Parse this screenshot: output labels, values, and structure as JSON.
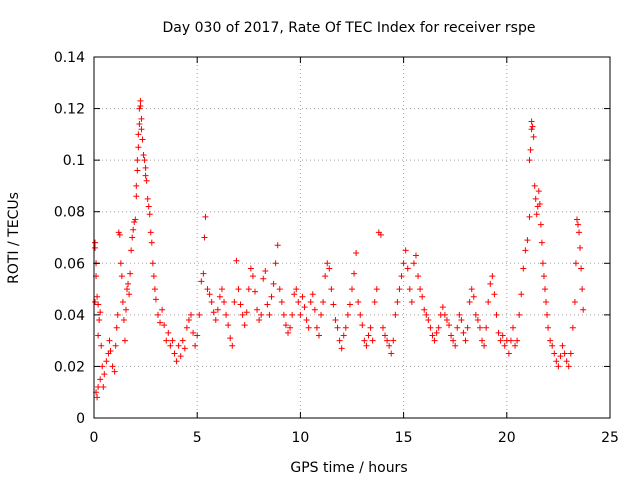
{
  "chart_data": {
    "type": "scatter",
    "title": "Day 030 of 2017, Rate Of TEC Index for receiver rspe",
    "xlabel": "GPS time / hours",
    "ylabel": "ROTI / TECUs",
    "xlim": [
      0,
      25
    ],
    "ylim": [
      0,
      0.14
    ],
    "x_ticks": [
      0,
      5,
      10,
      15,
      20,
      25
    ],
    "x_tick_labels": [
      "0",
      "5",
      "10",
      "15",
      "20",
      "25"
    ],
    "y_ticks": [
      0,
      0.02,
      0.04,
      0.06,
      0.08,
      0.1,
      0.12,
      0.14
    ],
    "y_tick_labels": [
      "0",
      "0.02",
      "0.04",
      "0.06",
      "0.08",
      "0.1",
      "0.12",
      "0.14"
    ],
    "grid": true,
    "marker": "+",
    "color": "#ff0000",
    "series": [
      {
        "name": "ROTI",
        "points": [
          [
            0.05,
            0.045
          ],
          [
            0.05,
            0.066
          ],
          [
            0.05,
            0.068
          ],
          [
            0.1,
            0.055
          ],
          [
            0.1,
            0.06
          ],
          [
            0.15,
            0.047
          ],
          [
            0.2,
            0.044
          ],
          [
            0.25,
            0.038
          ],
          [
            0.3,
            0.041
          ],
          [
            0.2,
            0.032
          ],
          [
            0.35,
            0.028
          ],
          [
            0.4,
            0.02
          ],
          [
            0.3,
            0.015
          ],
          [
            0.2,
            0.012
          ],
          [
            0.1,
            0.01
          ],
          [
            0.15,
            0.008
          ],
          [
            0.45,
            0.012
          ],
          [
            0.5,
            0.017
          ],
          [
            0.6,
            0.022
          ],
          [
            0.7,
            0.025
          ],
          [
            0.75,
            0.03
          ],
          [
            0.8,
            0.026
          ],
          [
            0.9,
            0.02
          ],
          [
            1.0,
            0.018
          ],
          [
            1.05,
            0.028
          ],
          [
            1.1,
            0.035
          ],
          [
            1.15,
            0.04
          ],
          [
            1.2,
            0.072
          ],
          [
            1.25,
            0.071
          ],
          [
            1.3,
            0.06
          ],
          [
            1.35,
            0.055
          ],
          [
            1.4,
            0.045
          ],
          [
            1.45,
            0.038
          ],
          [
            1.5,
            0.03
          ],
          [
            1.55,
            0.042
          ],
          [
            1.6,
            0.05
          ],
          [
            1.65,
            0.052
          ],
          [
            1.7,
            0.048
          ],
          [
            1.75,
            0.056
          ],
          [
            1.8,
            0.065
          ],
          [
            1.85,
            0.07
          ],
          [
            1.9,
            0.073
          ],
          [
            1.95,
            0.076
          ],
          [
            2.0,
            0.077
          ],
          [
            2.05,
            0.086
          ],
          [
            2.05,
            0.09
          ],
          [
            2.1,
            0.096
          ],
          [
            2.1,
            0.1
          ],
          [
            2.15,
            0.105
          ],
          [
            2.15,
            0.11
          ],
          [
            2.2,
            0.114
          ],
          [
            2.2,
            0.12
          ],
          [
            2.25,
            0.123
          ],
          [
            2.25,
            0.121
          ],
          [
            2.3,
            0.116
          ],
          [
            2.3,
            0.112
          ],
          [
            2.35,
            0.108
          ],
          [
            2.4,
            0.102
          ],
          [
            2.45,
            0.1
          ],
          [
            2.5,
            0.097
          ],
          [
            2.5,
            0.094
          ],
          [
            2.55,
            0.092
          ],
          [
            2.6,
            0.085
          ],
          [
            2.65,
            0.082
          ],
          [
            2.7,
            0.079
          ],
          [
            2.75,
            0.072
          ],
          [
            2.8,
            0.068
          ],
          [
            2.85,
            0.06
          ],
          [
            2.9,
            0.055
          ],
          [
            2.95,
            0.05
          ],
          [
            3.0,
            0.046
          ],
          [
            3.1,
            0.04
          ],
          [
            3.2,
            0.037
          ],
          [
            3.3,
            0.042
          ],
          [
            3.4,
            0.036
          ],
          [
            3.5,
            0.03
          ],
          [
            3.6,
            0.033
          ],
          [
            3.7,
            0.028
          ],
          [
            3.8,
            0.03
          ],
          [
            3.9,
            0.025
          ],
          [
            4.0,
            0.022
          ],
          [
            4.1,
            0.028
          ],
          [
            4.2,
            0.024
          ],
          [
            4.3,
            0.03
          ],
          [
            4.4,
            0.027
          ],
          [
            4.5,
            0.035
          ],
          [
            4.6,
            0.038
          ],
          [
            4.7,
            0.04
          ],
          [
            4.8,
            0.033
          ],
          [
            4.9,
            0.028
          ],
          [
            5.0,
            0.032
          ],
          [
            5.1,
            0.04
          ],
          [
            5.2,
            0.053
          ],
          [
            5.3,
            0.056
          ],
          [
            5.35,
            0.07
          ],
          [
            5.4,
            0.078
          ],
          [
            5.5,
            0.05
          ],
          [
            5.6,
            0.048
          ],
          [
            5.7,
            0.045
          ],
          [
            5.8,
            0.041
          ],
          [
            5.9,
            0.038
          ],
          [
            6.0,
            0.042
          ],
          [
            6.1,
            0.047
          ],
          [
            6.2,
            0.05
          ],
          [
            6.3,
            0.045
          ],
          [
            6.4,
            0.04
          ],
          [
            6.5,
            0.036
          ],
          [
            6.6,
            0.031
          ],
          [
            6.7,
            0.028
          ],
          [
            6.8,
            0.045
          ],
          [
            6.9,
            0.061
          ],
          [
            7.0,
            0.05
          ],
          [
            7.1,
            0.044
          ],
          [
            7.2,
            0.04
          ],
          [
            7.3,
            0.036
          ],
          [
            7.4,
            0.041
          ],
          [
            7.5,
            0.05
          ],
          [
            7.6,
            0.058
          ],
          [
            7.7,
            0.055
          ],
          [
            7.8,
            0.049
          ],
          [
            7.9,
            0.042
          ],
          [
            8.0,
            0.038
          ],
          [
            8.1,
            0.04
          ],
          [
            8.2,
            0.054
          ],
          [
            8.3,
            0.057
          ],
          [
            8.4,
            0.044
          ],
          [
            8.5,
            0.04
          ],
          [
            8.6,
            0.047
          ],
          [
            8.7,
            0.052
          ],
          [
            8.8,
            0.06
          ],
          [
            8.9,
            0.067
          ],
          [
            9.0,
            0.05
          ],
          [
            9.1,
            0.045
          ],
          [
            9.2,
            0.04
          ],
          [
            9.3,
            0.036
          ],
          [
            9.4,
            0.033
          ],
          [
            9.5,
            0.035
          ],
          [
            9.6,
            0.04
          ],
          [
            9.7,
            0.048
          ],
          [
            9.8,
            0.05
          ],
          [
            9.9,
            0.045
          ],
          [
            10.0,
            0.04
          ],
          [
            10.1,
            0.047
          ],
          [
            10.2,
            0.043
          ],
          [
            10.3,
            0.038
          ],
          [
            10.4,
            0.035
          ],
          [
            10.5,
            0.045
          ],
          [
            10.6,
            0.048
          ],
          [
            10.7,
            0.042
          ],
          [
            10.8,
            0.035
          ],
          [
            10.9,
            0.032
          ],
          [
            11.0,
            0.04
          ],
          [
            11.1,
            0.045
          ],
          [
            11.2,
            0.055
          ],
          [
            11.3,
            0.06
          ],
          [
            11.4,
            0.058
          ],
          [
            11.5,
            0.05
          ],
          [
            11.6,
            0.044
          ],
          [
            11.7,
            0.038
          ],
          [
            11.8,
            0.035
          ],
          [
            11.9,
            0.03
          ],
          [
            12.0,
            0.027
          ],
          [
            12.1,
            0.032
          ],
          [
            12.2,
            0.035
          ],
          [
            12.3,
            0.04
          ],
          [
            12.4,
            0.044
          ],
          [
            12.5,
            0.05
          ],
          [
            12.6,
            0.056
          ],
          [
            12.7,
            0.064
          ],
          [
            12.8,
            0.045
          ],
          [
            12.9,
            0.04
          ],
          [
            13.0,
            0.036
          ],
          [
            13.1,
            0.03
          ],
          [
            13.2,
            0.028
          ],
          [
            13.3,
            0.032
          ],
          [
            13.4,
            0.035
          ],
          [
            13.5,
            0.03
          ],
          [
            13.6,
            0.045
          ],
          [
            13.7,
            0.05
          ],
          [
            13.8,
            0.072
          ],
          [
            13.9,
            0.071
          ],
          [
            14.0,
            0.035
          ],
          [
            14.1,
            0.032
          ],
          [
            14.2,
            0.03
          ],
          [
            14.3,
            0.028
          ],
          [
            14.4,
            0.025
          ],
          [
            14.5,
            0.03
          ],
          [
            14.6,
            0.04
          ],
          [
            14.7,
            0.045
          ],
          [
            14.8,
            0.05
          ],
          [
            14.9,
            0.055
          ],
          [
            15.0,
            0.06
          ],
          [
            15.1,
            0.065
          ],
          [
            15.2,
            0.058
          ],
          [
            15.3,
            0.05
          ],
          [
            15.4,
            0.045
          ],
          [
            15.5,
            0.06
          ],
          [
            15.6,
            0.063
          ],
          [
            15.7,
            0.055
          ],
          [
            15.8,
            0.05
          ],
          [
            15.9,
            0.047
          ],
          [
            16.0,
            0.042
          ],
          [
            16.1,
            0.04
          ],
          [
            16.2,
            0.038
          ],
          [
            16.3,
            0.035
          ],
          [
            16.4,
            0.032
          ],
          [
            16.5,
            0.03
          ],
          [
            16.6,
            0.033
          ],
          [
            16.7,
            0.035
          ],
          [
            16.8,
            0.04
          ],
          [
            16.9,
            0.043
          ],
          [
            17.0,
            0.04
          ],
          [
            17.1,
            0.038
          ],
          [
            17.2,
            0.036
          ],
          [
            17.3,
            0.032
          ],
          [
            17.4,
            0.03
          ],
          [
            17.5,
            0.028
          ],
          [
            17.6,
            0.035
          ],
          [
            17.7,
            0.04
          ],
          [
            17.8,
            0.038
          ],
          [
            17.9,
            0.033
          ],
          [
            18.0,
            0.03
          ],
          [
            18.1,
            0.035
          ],
          [
            18.2,
            0.045
          ],
          [
            18.3,
            0.05
          ],
          [
            18.4,
            0.047
          ],
          [
            18.5,
            0.04
          ],
          [
            18.6,
            0.038
          ],
          [
            18.7,
            0.035
          ],
          [
            18.8,
            0.03
          ],
          [
            18.9,
            0.028
          ],
          [
            19.0,
            0.035
          ],
          [
            19.1,
            0.045
          ],
          [
            19.2,
            0.052
          ],
          [
            19.3,
            0.055
          ],
          [
            19.4,
            0.048
          ],
          [
            19.5,
            0.04
          ],
          [
            19.6,
            0.033
          ],
          [
            19.7,
            0.03
          ],
          [
            19.8,
            0.032
          ],
          [
            19.9,
            0.028
          ],
          [
            20.0,
            0.03
          ],
          [
            20.1,
            0.025
          ],
          [
            20.2,
            0.03
          ],
          [
            20.3,
            0.035
          ],
          [
            20.4,
            0.028
          ],
          [
            20.5,
            0.03
          ],
          [
            20.6,
            0.04
          ],
          [
            20.7,
            0.048
          ],
          [
            20.8,
            0.058
          ],
          [
            20.9,
            0.065
          ],
          [
            21.0,
            0.069
          ],
          [
            21.1,
            0.078
          ],
          [
            21.1,
            0.1
          ],
          [
            21.15,
            0.104
          ],
          [
            21.2,
            0.112
          ],
          [
            21.2,
            0.115
          ],
          [
            21.25,
            0.113
          ],
          [
            21.3,
            0.109
          ],
          [
            21.35,
            0.09
          ],
          [
            21.4,
            0.085
          ],
          [
            21.45,
            0.079
          ],
          [
            21.5,
            0.082
          ],
          [
            21.55,
            0.088
          ],
          [
            21.6,
            0.083
          ],
          [
            21.65,
            0.075
          ],
          [
            21.7,
            0.068
          ],
          [
            21.75,
            0.06
          ],
          [
            21.8,
            0.055
          ],
          [
            21.85,
            0.05
          ],
          [
            21.9,
            0.045
          ],
          [
            21.95,
            0.04
          ],
          [
            22.0,
            0.035
          ],
          [
            22.1,
            0.03
          ],
          [
            22.2,
            0.028
          ],
          [
            22.3,
            0.025
          ],
          [
            22.4,
            0.022
          ],
          [
            22.5,
            0.02
          ],
          [
            22.6,
            0.024
          ],
          [
            22.7,
            0.028
          ],
          [
            22.8,
            0.025
          ],
          [
            22.9,
            0.022
          ],
          [
            23.0,
            0.02
          ],
          [
            23.1,
            0.025
          ],
          [
            23.2,
            0.035
          ],
          [
            23.3,
            0.045
          ],
          [
            23.35,
            0.06
          ],
          [
            23.4,
            0.077
          ],
          [
            23.45,
            0.075
          ],
          [
            23.5,
            0.072
          ],
          [
            23.55,
            0.066
          ],
          [
            23.6,
            0.058
          ],
          [
            23.65,
            0.05
          ],
          [
            23.7,
            0.042
          ]
        ]
      }
    ]
  }
}
